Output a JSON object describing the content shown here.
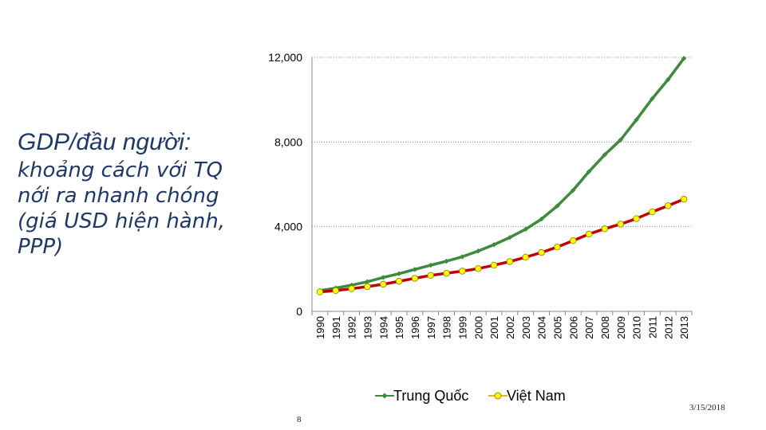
{
  "slide": {
    "title_line1": "GDP/đầu người:",
    "title_rest": "khoảng cách với TQ nới ra nhanh chóng (giá USD hiện hành, PPP)",
    "page_number": "8",
    "date": "3/15/2018"
  },
  "chart_data": {
    "type": "line",
    "title": "",
    "xlabel": "",
    "ylabel": "",
    "ylim": [
      0,
      12000
    ],
    "yticks": [
      0,
      4000,
      8000,
      12000
    ],
    "ytick_labels": [
      "0",
      "4,000",
      "8,000",
      "12,000"
    ],
    "grid": true,
    "legend": "bottom",
    "x": [
      "1990",
      "1991",
      "1992",
      "1993",
      "1994",
      "1995",
      "1996",
      "1997",
      "1998",
      "1999",
      "2000",
      "2001",
      "2002",
      "2003",
      "2004",
      "2005",
      "2006",
      "2007",
      "2008",
      "2009",
      "2010",
      "2011",
      "2012",
      "2013"
    ],
    "series": [
      {
        "name": "Trung Quốc",
        "color": "#3e8a3e",
        "marker": "diamond",
        "values": [
          980,
          1100,
          1240,
          1400,
          1600,
          1780,
          1980,
          2180,
          2370,
          2580,
          2850,
          3150,
          3490,
          3880,
          4360,
          4980,
          5720,
          6600,
          7400,
          8100,
          9050,
          10050,
          10950,
          11950
        ]
      },
      {
        "name": "Việt Nam",
        "color": "#c00000",
        "marker_fill": "#ffff00",
        "marker": "circle",
        "values": [
          920,
          980,
          1070,
          1170,
          1280,
          1420,
          1560,
          1700,
          1800,
          1900,
          2020,
          2180,
          2350,
          2560,
          2780,
          3040,
          3340,
          3650,
          3900,
          4120,
          4380,
          4700,
          4990,
          5300
        ]
      }
    ]
  }
}
